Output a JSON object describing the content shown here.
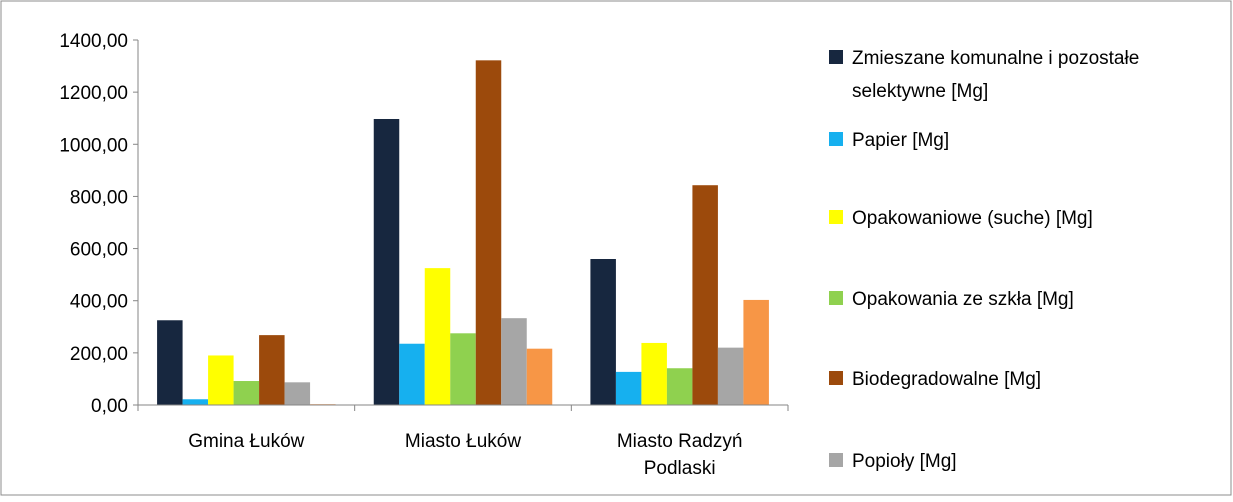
{
  "chart_data": {
    "type": "bar",
    "title": "",
    "xlabel": "",
    "ylabel": "",
    "ylim": [
      0,
      1400
    ],
    "yticks": [
      "0,00",
      "200,00",
      "400,00",
      "600,00",
      "800,00",
      "1000,00",
      "1200,00",
      "1400,00"
    ],
    "grid": false,
    "legend_position": "right",
    "categories": [
      [
        "Gmina Łuków"
      ],
      [
        "Miasto Łuków"
      ],
      [
        "Miasto Radzyń",
        "Podlaski"
      ]
    ],
    "series": [
      {
        "name": "Zmieszane komunalne i pozostałe selektywne [Mg]",
        "legend_lines": [
          "Zmieszane komunalne i pozostałe",
          "selektywne [Mg]"
        ],
        "color": "#17273f",
        "values": [
          325,
          1097,
          560
        ]
      },
      {
        "name": "Papier [Mg]",
        "legend_lines": [
          "Papier [Mg]"
        ],
        "color": "#16b0ef",
        "values": [
          22,
          235,
          127
        ]
      },
      {
        "name": "Opakowaniowe (suche) [Mg]",
        "legend_lines": [
          "Opakowaniowe (suche) [Mg]"
        ],
        "color": "#ffff00",
        "values": [
          190,
          525,
          238
        ]
      },
      {
        "name": "Opakowania ze szkła [Mg]",
        "legend_lines": [
          "Opakowania ze szkła [Mg]"
        ],
        "color": "#8fd14f",
        "values": [
          92,
          275,
          141
        ]
      },
      {
        "name": "Biodegradowalne [Mg]",
        "legend_lines": [
          "Biodegradowalne [Mg]"
        ],
        "color": "#9c4a0c",
        "values": [
          268,
          1322,
          843
        ]
      },
      {
        "name": "Popioły [Mg]",
        "legend_lines": [
          "Popioły [Mg]"
        ],
        "color": "#a6a6a6",
        "values": [
          87,
          333,
          220
        ]
      },
      {
        "name": "",
        "legend_lines": [],
        "color": "#f79646",
        "values": [
          3,
          216,
          403
        ]
      }
    ]
  }
}
